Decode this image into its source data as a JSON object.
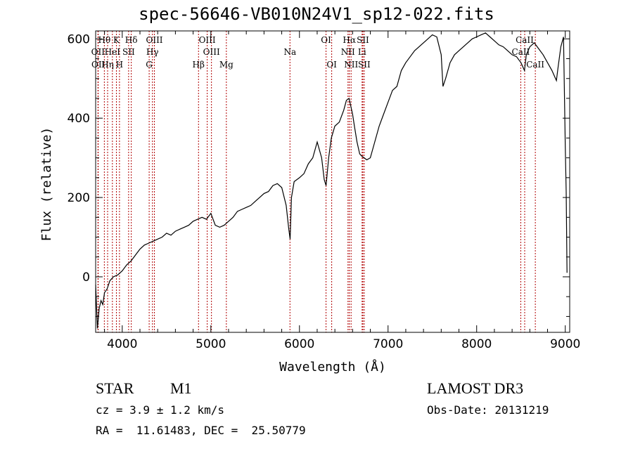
{
  "chart_data": {
    "type": "line",
    "title": "spec-56646-VB010N24V1_sp12-022.fits",
    "xlabel": "Wavelength (Å)",
    "ylabel": "Flux (relative)",
    "xlim": [
      3700,
      9050
    ],
    "ylim": [
      -140,
      620
    ],
    "xticks": [
      4000,
      5000,
      6000,
      7000,
      8000,
      9000
    ],
    "yticks": [
      0,
      200,
      400,
      600
    ],
    "spectrum": {
      "x": [
        3700,
        3720,
        3740,
        3760,
        3780,
        3800,
        3830,
        3860,
        3900,
        3950,
        4000,
        4050,
        4100,
        4150,
        4200,
        4250,
        4300,
        4350,
        4400,
        4450,
        4500,
        4550,
        4600,
        4650,
        4700,
        4750,
        4800,
        4850,
        4900,
        4950,
        5000,
        5050,
        5100,
        5150,
        5200,
        5250,
        5300,
        5350,
        5400,
        5450,
        5500,
        5550,
        5600,
        5650,
        5700,
        5750,
        5800,
        5850,
        5880,
        5895,
        5910,
        5940,
        6000,
        6050,
        6100,
        6150,
        6200,
        6250,
        6280,
        6300,
        6330,
        6360,
        6400,
        6450,
        6500,
        6530,
        6560,
        6580,
        6600,
        6620,
        6650,
        6680,
        6700,
        6730,
        6760,
        6800,
        6850,
        6900,
        6950,
        7000,
        7050,
        7100,
        7150,
        7200,
        7250,
        7300,
        7350,
        7400,
        7450,
        7500,
        7550,
        7600,
        7620,
        7650,
        7700,
        7750,
        7800,
        7850,
        7900,
        7950,
        8000,
        8050,
        8100,
        8150,
        8200,
        8250,
        8300,
        8350,
        8400,
        8450,
        8500,
        8540,
        8560,
        8600,
        8650,
        8700,
        8750,
        8800,
        8850,
        8900,
        8920,
        8950,
        8980,
        9000,
        9010,
        9020
      ],
      "y": [
        -20,
        -130,
        -80,
        -60,
        -70,
        -40,
        -30,
        -10,
        0,
        5,
        15,
        30,
        40,
        55,
        70,
        80,
        85,
        90,
        95,
        100,
        110,
        105,
        115,
        120,
        125,
        130,
        140,
        145,
        150,
        145,
        160,
        130,
        125,
        130,
        140,
        150,
        165,
        170,
        175,
        180,
        190,
        200,
        210,
        215,
        230,
        235,
        225,
        180,
        120,
        95,
        200,
        240,
        250,
        260,
        285,
        300,
        340,
        300,
        245,
        230,
        300,
        350,
        380,
        390,
        420,
        445,
        450,
        430,
        410,
        380,
        340,
        310,
        305,
        300,
        295,
        300,
        340,
        380,
        410,
        440,
        470,
        480,
        520,
        540,
        555,
        570,
        580,
        590,
        600,
        610,
        605,
        560,
        480,
        500,
        540,
        560,
        570,
        580,
        590,
        600,
        605,
        610,
        615,
        605,
        595,
        585,
        580,
        570,
        560,
        555,
        540,
        520,
        560,
        580,
        590,
        575,
        560,
        540,
        520,
        495,
        530,
        580,
        605,
        330,
        215,
        10
      ]
    },
    "line_markers": [
      {
        "wl": 3798,
        "label": "Hθ",
        "row": 1
      },
      {
        "wl": 3726,
        "label": "OII",
        "row": 2
      },
      {
        "wl": 3729,
        "label": "OII",
        "row": 3
      },
      {
        "wl": 3835,
        "label": "Hη",
        "row": 3
      },
      {
        "wl": 3889,
        "label": "HeI",
        "row": 2
      },
      {
        "wl": 3934,
        "label": "K",
        "row": 1
      },
      {
        "wl": 3969,
        "label": "H",
        "row": 3
      },
      {
        "wl": 4072,
        "label": "SII",
        "row": 2
      },
      {
        "wl": 4102,
        "label": "Hδ",
        "row": 1
      },
      {
        "wl": 4304,
        "label": "G",
        "row": 3
      },
      {
        "wl": 4341,
        "label": "Hγ",
        "row": 2
      },
      {
        "wl": 4363,
        "label": "OIII",
        "row": 1
      },
      {
        "wl": 4861,
        "label": "Hβ",
        "row": 3
      },
      {
        "wl": 4959,
        "label": "OIII",
        "row": 1
      },
      {
        "wl": 5007,
        "label": "OIII",
        "row": 2
      },
      {
        "wl": 5175,
        "label": "Mg",
        "row": 3
      },
      {
        "wl": 5893,
        "label": "Na",
        "row": 2
      },
      {
        "wl": 6300,
        "label": "OI",
        "row": 1
      },
      {
        "wl": 6364,
        "label": "OI",
        "row": 3
      },
      {
        "wl": 6548,
        "label": "NII",
        "row": 2
      },
      {
        "wl": 6563,
        "label": "Hα",
        "row": 1
      },
      {
        "wl": 6583,
        "label": "NII",
        "row": 3
      },
      {
        "wl": 6707,
        "label": "Li",
        "row": 2
      },
      {
        "wl": 6716,
        "label": "SII",
        "row": 1
      },
      {
        "wl": 6731,
        "label": "SII",
        "row": 3
      },
      {
        "wl": 8498,
        "label": "CaII",
        "row": 2
      },
      {
        "wl": 8542,
        "label": "CaII",
        "row": 1
      },
      {
        "wl": 8662,
        "label": "CaII",
        "row": 3
      }
    ]
  },
  "info": {
    "class": "STAR",
    "subclass": "M1",
    "survey": "LAMOST DR3",
    "cz": "cz = 3.9 ± 1.2 km/s",
    "obs_date": "Obs-Date: 20131219",
    "coords": "RA =  11.61483, DEC =  25.50779"
  }
}
